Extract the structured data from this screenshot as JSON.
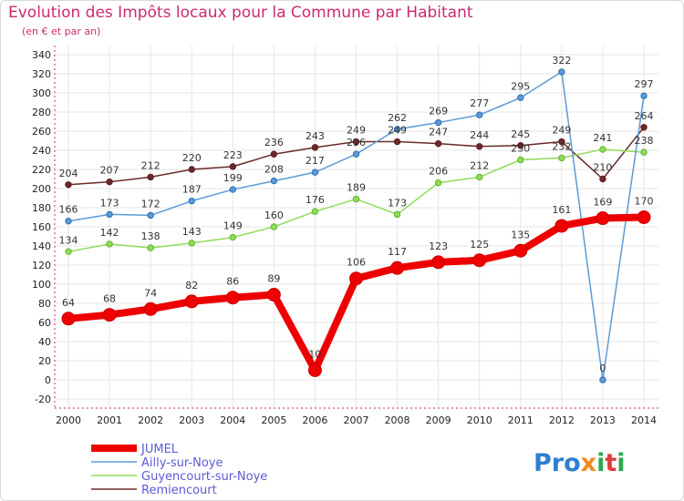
{
  "title": "Evolution des Impôts locaux pour la Commune par Habitant",
  "subtitle": "(en € et par an)",
  "logo": "Proxiti",
  "chart_data": {
    "type": "line",
    "title": "Evolution des Impôts locaux pour la Commune par Habitant",
    "ylabel": "(en € et par an)",
    "xlabel": "",
    "categories": [
      "2000",
      "2001",
      "2002",
      "2003",
      "2004",
      "2005",
      "2006",
      "2007",
      "2008",
      "2009",
      "2010",
      "2011",
      "2012",
      "2013",
      "2014"
    ],
    "ylim": [
      -20,
      340
    ],
    "yticks": [
      -20,
      0,
      20,
      40,
      60,
      80,
      100,
      120,
      140,
      160,
      180,
      200,
      220,
      240,
      260,
      280,
      300,
      320,
      340
    ],
    "legend_position": "bottom-left",
    "grid": true,
    "series": [
      {
        "name": "JUMEL",
        "color": "#ee0000",
        "values": [
          64,
          68,
          74,
          82,
          86,
          89,
          10,
          106,
          117,
          123,
          125,
          135,
          161,
          169,
          170
        ]
      },
      {
        "name": "Ailly-sur-Noye",
        "color": "#5b9bd5",
        "values": [
          166,
          173,
          172,
          187,
          199,
          208,
          217,
          236,
          262,
          269,
          277,
          295,
          322,
          0,
          297
        ]
      },
      {
        "name": "Guyencourt-sur-Noye",
        "color": "#8fdc5a",
        "values": [
          134,
          142,
          138,
          143,
          149,
          160,
          176,
          189,
          173,
          206,
          212,
          230,
          232,
          241,
          238
        ]
      },
      {
        "name": "Remiencourt",
        "color": "#6b2a2a",
        "values": [
          204,
          207,
          212,
          220,
          223,
          236,
          243,
          249,
          249,
          247,
          244,
          245,
          249,
          210,
          264
        ]
      }
    ]
  }
}
